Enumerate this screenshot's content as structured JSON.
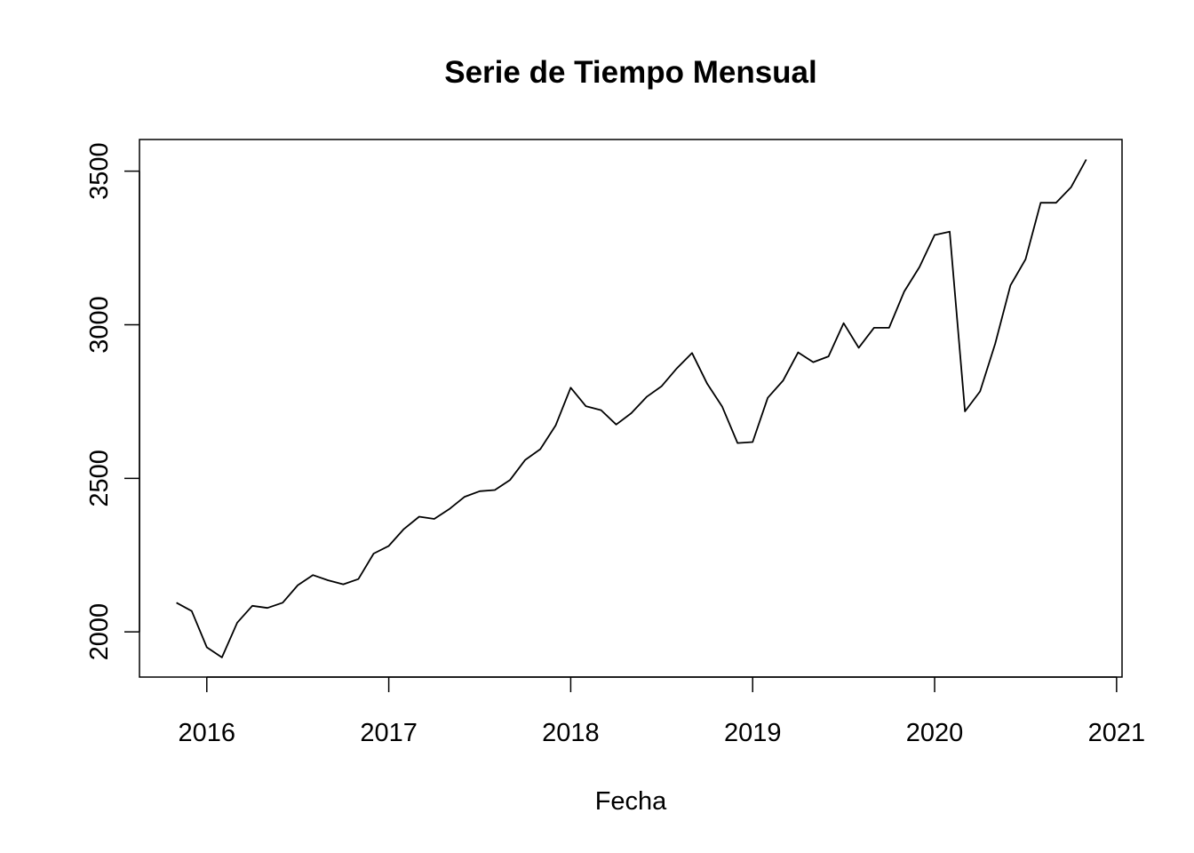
{
  "chart_data": {
    "type": "line",
    "title": "Serie de Tiempo Mensual",
    "xlabel": "Fecha",
    "ylabel": "",
    "xlim": [
      2015.63,
      2021.03
    ],
    "ylim": [
      1853,
      3603
    ],
    "xticks": [
      2016,
      2017,
      2018,
      2019,
      2020,
      2021
    ],
    "yticks": [
      2000,
      2500,
      3000,
      3500
    ],
    "grid": false,
    "series": [
      {
        "color": "#000000",
        "x": [
          2015.833,
          2015.917,
          2016.0,
          2016.083,
          2016.167,
          2016.25,
          2016.333,
          2016.417,
          2016.5,
          2016.583,
          2016.667,
          2016.75,
          2016.833,
          2016.917,
          2017.0,
          2017.083,
          2017.167,
          2017.25,
          2017.333,
          2017.417,
          2017.5,
          2017.583,
          2017.667,
          2017.75,
          2017.833,
          2017.917,
          2018.0,
          2018.083,
          2018.167,
          2018.25,
          2018.333,
          2018.417,
          2018.5,
          2018.583,
          2018.667,
          2018.75,
          2018.833,
          2018.917,
          2019.0,
          2019.083,
          2019.167,
          2019.25,
          2019.333,
          2019.417,
          2019.5,
          2019.583,
          2019.667,
          2019.75,
          2019.833,
          2019.917,
          2020.0,
          2020.083,
          2020.167,
          2020.25,
          2020.333,
          2020.417,
          2020.5,
          2020.583,
          2020.667,
          2020.75,
          2020.833
        ],
        "values": [
          2095,
          2068,
          1950,
          1917,
          2030,
          2085,
          2078,
          2095,
          2152,
          2185,
          2168,
          2155,
          2172,
          2255,
          2280,
          2335,
          2375,
          2368,
          2400,
          2440,
          2458,
          2462,
          2495,
          2560,
          2595,
          2672,
          2795,
          2735,
          2722,
          2675,
          2712,
          2765,
          2800,
          2858,
          2908,
          2808,
          2733,
          2615,
          2618,
          2762,
          2818,
          2910,
          2878,
          2897,
          3005,
          2925,
          2990,
          2990,
          3108,
          3188,
          3292,
          3303,
          2718,
          2783,
          2938,
          3128,
          3213,
          3397,
          3397,
          3448,
          3538
        ]
      }
    ]
  }
}
